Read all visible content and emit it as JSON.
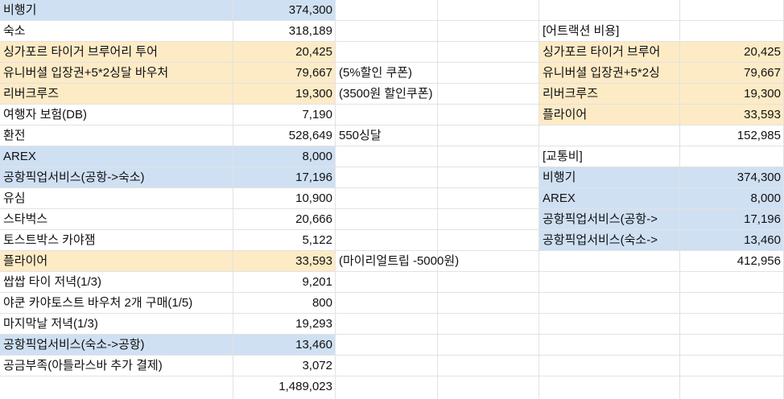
{
  "sheet": {
    "colors": {
      "blue": "#cfe0f3",
      "yellow": "#fdebc6",
      "grid": "#e2e2e2"
    },
    "columns": [
      {
        "key": "A",
        "rows": [
          {
            "text": "비행기",
            "fill": "blue"
          },
          {
            "text": "숙소"
          },
          {
            "text": "싱가포르 타이거 브루어리 투어",
            "fill": "yellow"
          },
          {
            "text": "유니버셜 입장권+5*2싱달 바우처",
            "fill": "yellow"
          },
          {
            "text": "리버크루즈",
            "fill": "yellow"
          },
          {
            "text": "여행자 보험(DB)"
          },
          {
            "text": "환전"
          },
          {
            "text": "AREX",
            "fill": "blue"
          },
          {
            "text": "공항픽업서비스(공항->숙소)",
            "fill": "blue"
          },
          {
            "text": "유심"
          },
          {
            "text": "스타벅스"
          },
          {
            "text": "토스트박스 카야잼"
          },
          {
            "text": "플라이어",
            "fill": "yellow"
          },
          {
            "text": "쌉쌉 타이 저녁(1/3)"
          },
          {
            "text": "야쿤 카야토스트 바우처 2개 구매(1/5)"
          },
          {
            "text": "마지막날 저녁(1/3)"
          },
          {
            "text": "공항픽업서비스(숙소->공항)",
            "fill": "blue"
          },
          {
            "text": "공금부족(아틀라스바 추가 결제)"
          },
          {
            "text": ""
          }
        ]
      },
      {
        "key": "B",
        "numeric": true,
        "rows": [
          {
            "text": "374,300",
            "fill": "blue"
          },
          {
            "text": "318,189"
          },
          {
            "text": "20,425",
            "fill": "yellow"
          },
          {
            "text": "79,667",
            "fill": "yellow"
          },
          {
            "text": "19,300",
            "fill": "yellow"
          },
          {
            "text": "7,190"
          },
          {
            "text": "528,649"
          },
          {
            "text": "8,000",
            "fill": "blue"
          },
          {
            "text": "17,196",
            "fill": "blue"
          },
          {
            "text": "10,900"
          },
          {
            "text": "20,666"
          },
          {
            "text": "5,122"
          },
          {
            "text": "33,593",
            "fill": "yellow"
          },
          {
            "text": "9,201"
          },
          {
            "text": "800"
          },
          {
            "text": "19,293"
          },
          {
            "text": "13,460",
            "fill": "blue"
          },
          {
            "text": "3,072"
          },
          {
            "text": "1,489,023"
          }
        ]
      },
      {
        "key": "C",
        "rows": [
          {
            "text": ""
          },
          {
            "text": ""
          },
          {
            "text": ""
          },
          {
            "text": "(5%할인 쿠폰)"
          },
          {
            "text": "(3500원 할인쿠폰)"
          },
          {
            "text": ""
          },
          {
            "text": "550싱달"
          },
          {
            "text": ""
          },
          {
            "text": ""
          },
          {
            "text": ""
          },
          {
            "text": ""
          },
          {
            "text": ""
          },
          {
            "text": "(마이리얼트립 -5000원)"
          },
          {
            "text": ""
          },
          {
            "text": ""
          },
          {
            "text": ""
          },
          {
            "text": ""
          },
          {
            "text": ""
          },
          {
            "text": ""
          }
        ]
      },
      {
        "key": "D",
        "rows": [
          {
            "text": ""
          },
          {
            "text": ""
          },
          {
            "text": ""
          },
          {
            "text": ""
          },
          {
            "text": ""
          },
          {
            "text": ""
          },
          {
            "text": ""
          },
          {
            "text": ""
          },
          {
            "text": ""
          },
          {
            "text": ""
          },
          {
            "text": ""
          },
          {
            "text": ""
          },
          {
            "text": ""
          },
          {
            "text": ""
          },
          {
            "text": ""
          },
          {
            "text": ""
          },
          {
            "text": ""
          },
          {
            "text": ""
          },
          {
            "text": ""
          }
        ]
      },
      {
        "key": "E",
        "rows": [
          {
            "text": ""
          },
          {
            "text": "[어트랙션 비용]"
          },
          {
            "text": "싱가포르 타이거 브루어",
            "fill": "yellow"
          },
          {
            "text": "유니버셜 입장권+5*2싱",
            "fill": "yellow"
          },
          {
            "text": "리버크루즈",
            "fill": "yellow"
          },
          {
            "text": "플라이어",
            "fill": "yellow"
          },
          {
            "text": ""
          },
          {
            "text": "[교통비]"
          },
          {
            "text": "비행기",
            "fill": "blue"
          },
          {
            "text": "AREX",
            "fill": "blue"
          },
          {
            "text": "공항픽업서비스(공항->",
            "fill": "blue"
          },
          {
            "text": "공항픽업서비스(숙소->",
            "fill": "blue"
          },
          {
            "text": ""
          },
          {
            "text": ""
          },
          {
            "text": ""
          },
          {
            "text": ""
          },
          {
            "text": ""
          },
          {
            "text": ""
          },
          {
            "text": ""
          }
        ]
      },
      {
        "key": "F",
        "numeric": true,
        "rows": [
          {
            "text": ""
          },
          {
            "text": ""
          },
          {
            "text": "20,425",
            "fill": "yellow"
          },
          {
            "text": "79,667",
            "fill": "yellow"
          },
          {
            "text": "19,300",
            "fill": "yellow"
          },
          {
            "text": "33,593",
            "fill": "yellow"
          },
          {
            "text": "152,985"
          },
          {
            "text": ""
          },
          {
            "text": "374,300",
            "fill": "blue"
          },
          {
            "text": "8,000",
            "fill": "blue"
          },
          {
            "text": "17,196",
            "fill": "blue"
          },
          {
            "text": "13,460",
            "fill": "blue"
          },
          {
            "text": "412,956"
          },
          {
            "text": ""
          },
          {
            "text": ""
          },
          {
            "text": ""
          },
          {
            "text": ""
          },
          {
            "text": ""
          },
          {
            "text": ""
          }
        ]
      }
    ]
  }
}
